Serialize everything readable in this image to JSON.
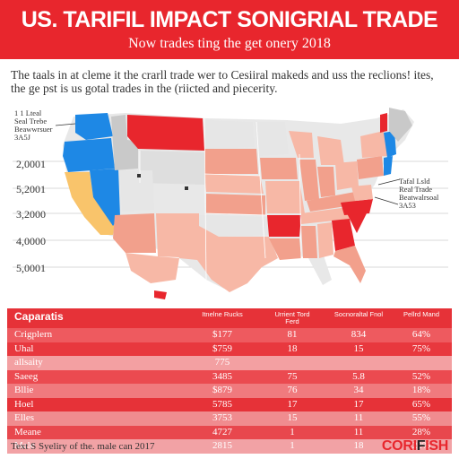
{
  "header": {
    "title": "US. TARIFIL IMPACT SONIGRIAL TRADE",
    "subtitle": "Now trades ting the get onery 2018"
  },
  "intro": "The taals in at cleme it the crarll trade wer to Cesiiral makeds and uss the reclions! ites, the ge pst is us gotal trades in the (riicted and piecerity.",
  "map": {
    "grid_labels": [
      "2,0001",
      "5,2001",
      "3,2000",
      "4,0000",
      "5,0001"
    ],
    "legend_left": [
      "1 1 Lteal",
      "Seal Trebe",
      "Beawwrsuer",
      "3A5J"
    ],
    "legend_right": [
      "Tafal Lsld",
      "Real Trade",
      "Beatwalrsoal",
      "3A53"
    ],
    "colors": {
      "deep_red": "#e8262d",
      "salmon": "#f2a08c",
      "light_salmon": "#f7b8a6",
      "blue": "#1e88e5",
      "gray": "#c9c9c9",
      "light_gray": "#e6e6e6",
      "yellow": "#f9c46b"
    }
  },
  "table": {
    "columns": [
      "Caparatis",
      "Itnelne Rucks",
      "Urrient Tord Ferd",
      "Socnoraltal Fnol",
      "Pellrd Mand"
    ],
    "rows": [
      {
        "label": "Crigplern",
        "values": [
          "$177",
          "81",
          "834",
          "64%"
        ]
      },
      {
        "label": "Uhal",
        "values": [
          "$759",
          "18",
          "15",
          "75%"
        ]
      },
      {
        "label": "allsaity",
        "values": [
          "775",
          "",
          "",
          ""
        ]
      },
      {
        "label": "Saeeg",
        "values": [
          "3485",
          "75",
          "5.8",
          "52%"
        ]
      },
      {
        "label": "Bllie",
        "values": [
          "$879",
          "76",
          "34",
          "18%"
        ]
      },
      {
        "label": "Hoel",
        "values": [
          "5785",
          "17",
          "17",
          "65%"
        ]
      },
      {
        "label": "Elles",
        "values": [
          "3753",
          "15",
          "11",
          "55%"
        ]
      },
      {
        "label": "Meane",
        "values": [
          "4727",
          "1",
          "11",
          "28%"
        ]
      },
      {
        "label": "Male",
        "values": [
          "2815",
          "1",
          "18",
          "22%"
        ]
      }
    ]
  },
  "footer": {
    "note": "Text S Syeliry of the. male can 2017",
    "brand_red": "CORI",
    "brand_dark": "F",
    "brand_red2": "ISH"
  }
}
